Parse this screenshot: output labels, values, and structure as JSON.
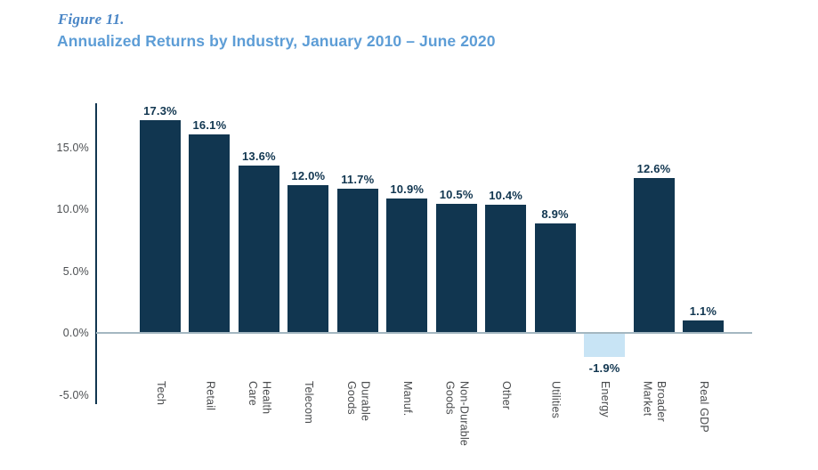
{
  "figure": {
    "label": "Figure 11.",
    "title": "Annualized Returns by Industry, January 2010 – June 2020"
  },
  "colors": {
    "figure_label_blue": "#4a86c6",
    "title_blue": "#5d9dd6",
    "bar_dark_navy": "#113650",
    "bar_negative_light_blue": "#c8e4f5",
    "axis_line_navy": "#113650",
    "zero_line_gray_blue": "#a4b7c1",
    "value_label_navy": "#113650",
    "y_tick_gray": "#4c4f52",
    "category_label_gray": "#4a4c4e",
    "background": "#ffffff"
  },
  "chart_data": {
    "type": "bar",
    "title": "Annualized Returns by Industry, January 2010 – June 2020",
    "figure_number": "Figure 11.",
    "categories": [
      "Tech",
      "Retail",
      "Health\nCare",
      "Telecom",
      "Durable\nGoods",
      "Manuf.",
      "Non-Durable\nGoods",
      "Other",
      "Utilities",
      "Energy",
      "Broader\nMarket",
      "Real GDP"
    ],
    "values": [
      17.3,
      16.1,
      13.6,
      12.0,
      11.7,
      10.9,
      10.5,
      10.4,
      8.9,
      -1.9,
      12.6,
      1.1
    ],
    "value_labels": [
      "17.3%",
      "16.1%",
      "13.6%",
      "12.0%",
      "11.7%",
      "10.9%",
      "10.5%",
      "10.4%",
      "8.9%",
      "-1.9%",
      "12.6%",
      "1.1%"
    ],
    "xlabel": "",
    "ylabel": "",
    "y_ticks": [
      {
        "label": "15.0%",
        "value": 15
      },
      {
        "label": "10.0%",
        "value": 10
      },
      {
        "label": "5.0%",
        "value": 5
      },
      {
        "label": "0.0%",
        "value": 0
      },
      {
        "label": "-5.0%",
        "value": -5
      }
    ],
    "ylim": [
      -5.5,
      18.5
    ],
    "grid": false,
    "legend": false,
    "bar_orientation": "vertical",
    "negative_bars_style": "light-blue-below-zero-line",
    "value_labels_position": "above-positive-bars, below-negative-bars"
  }
}
